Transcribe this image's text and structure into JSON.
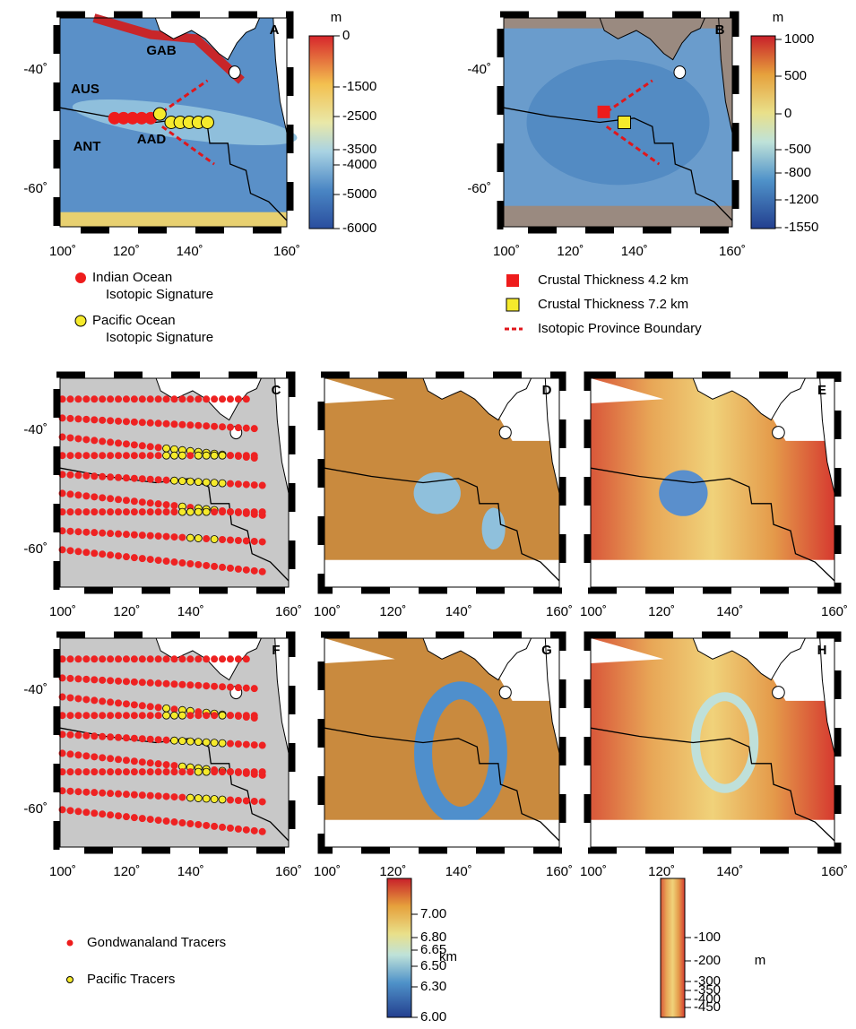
{
  "panel_labels": [
    "A",
    "B",
    "C",
    "D",
    "E",
    "F",
    "G",
    "H"
  ],
  "place_labels": [
    "GAB",
    "AUS",
    "ANT",
    "AAD"
  ],
  "x_tick_labels": [
    "100˚",
    "120˚",
    "140˚",
    "160˚"
  ],
  "y_tick_labels": [
    "-40˚",
    "-60˚"
  ],
  "colorbars": [
    {
      "unit": "m",
      "ticks": [
        "0",
        "-1500",
        "-2500",
        "-3500",
        "-4000",
        "-5000",
        "-6000"
      ]
    },
    {
      "unit": "m",
      "ticks": [
        "1000",
        "500",
        "0",
        "-500",
        "-800",
        "-1200",
        "-1550"
      ]
    },
    {
      "unit": "km",
      "ticks": [
        "7.00",
        "6.80",
        "6.65",
        "6.50",
        "6.30",
        "6.00"
      ]
    },
    {
      "unit": "m",
      "ticks": [
        "-100",
        "-200",
        "-300",
        "-350",
        "-400",
        "-450"
      ]
    }
  ],
  "legend_a": [
    {
      "lines": [
        "Indian Ocean",
        "Isotopic Signature"
      ]
    },
    {
      "lines": [
        "Pacific Ocean",
        "Isotopic Signature"
      ]
    }
  ],
  "legend_b": [
    "Crustal Thickness 4.2 km",
    "Crustal Thickness 7.2 km",
    "Isotopic Province Boundary"
  ],
  "legend_tracers": [
    "Gondwanaland Tracers",
    "Pacific Tracers"
  ]
}
